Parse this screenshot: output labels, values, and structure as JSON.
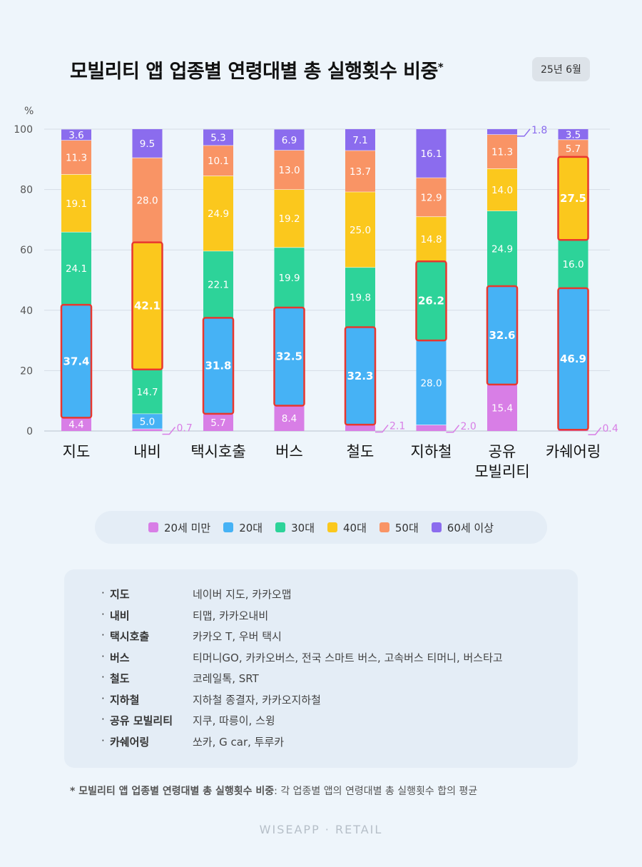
{
  "title": "모빌리티 앱 업종별 연령대별 총 실행횟수 비중",
  "title_mark": "*",
  "date_badge": "25년 6월",
  "brand": "WISEAPP · RETAIL",
  "chart_data": {
    "type": "bar",
    "stacked": true,
    "ylabel": "%",
    "ylim": [
      0,
      100
    ],
    "yticks": [
      0,
      20,
      40,
      60,
      80,
      100
    ],
    "grid": true,
    "legend_position": "bottom",
    "categories": [
      [
        "지도"
      ],
      [
        "내비"
      ],
      [
        "택시호출"
      ],
      [
        "버스"
      ],
      [
        "철도"
      ],
      [
        "지하철"
      ],
      [
        "공유",
        "모빌리티"
      ],
      [
        "카쉐어링"
      ]
    ],
    "series": [
      {
        "name": "20세 미만",
        "color": "#d87ee6",
        "values": [
          4.4,
          0.7,
          5.7,
          8.4,
          2.1,
          2.0,
          15.4,
          0.4
        ]
      },
      {
        "name": "20대",
        "color": "#46b2f5",
        "values": [
          37.4,
          5.0,
          31.8,
          32.5,
          32.3,
          28.0,
          32.6,
          46.9
        ]
      },
      {
        "name": "30대",
        "color": "#2dd399",
        "values": [
          24.1,
          14.7,
          22.1,
          19.9,
          19.8,
          26.2,
          24.9,
          16.0
        ]
      },
      {
        "name": "40대",
        "color": "#fbc81d",
        "values": [
          19.1,
          42.1,
          24.9,
          19.2,
          25.0,
          14.8,
          14.0,
          27.5
        ]
      },
      {
        "name": "50대",
        "color": "#f99465",
        "values": [
          11.3,
          28.0,
          10.1,
          13.0,
          13.7,
          12.9,
          11.3,
          5.7
        ]
      },
      {
        "name": "60세 이상",
        "color": "#8b6cee",
        "values": [
          3.6,
          9.5,
          5.3,
          6.9,
          7.1,
          16.1,
          1.8,
          3.5
        ]
      }
    ],
    "highlighted": [
      {
        "category_index": 0,
        "series_index": 1
      },
      {
        "category_index": 1,
        "series_index": 3
      },
      {
        "category_index": 2,
        "series_index": 1
      },
      {
        "category_index": 3,
        "series_index": 1
      },
      {
        "category_index": 4,
        "series_index": 1
      },
      {
        "category_index": 5,
        "series_index": 2
      },
      {
        "category_index": 6,
        "series_index": 1
      },
      {
        "category_index": 7,
        "series_index": 1
      },
      {
        "category_index": 7,
        "series_index": 3
      }
    ],
    "highlight_color": "#e8372e"
  },
  "info": [
    {
      "category": "지도",
      "apps": "네이버 지도, 카카오맵"
    },
    {
      "category": "내비",
      "apps": "티맵, 카카오내비"
    },
    {
      "category": "택시호출",
      "apps": "카카오 T, 우버 택시"
    },
    {
      "category": "버스",
      "apps": "티머니GO, 카카오버스, 전국 스마트 버스, 고속버스 티머니, 버스타고"
    },
    {
      "category": "철도",
      "apps": "코레일톡, SRT"
    },
    {
      "category": "지하철",
      "apps": "지하철 종결자, 카카오지하철"
    },
    {
      "category": "공유 모빌리티",
      "apps": "지쿠, 따릉이, 스윙"
    },
    {
      "category": "카쉐어링",
      "apps": "쏘카, G car, 투루카"
    }
  ],
  "info_bullet": "·",
  "footnote_bold": "* 모빌리티 앱 업종별 연령대별 총 실행횟수 비중",
  "footnote_rest": ": 각 업종별 앱의 연령대별 총 실행횟수 합의 평균"
}
